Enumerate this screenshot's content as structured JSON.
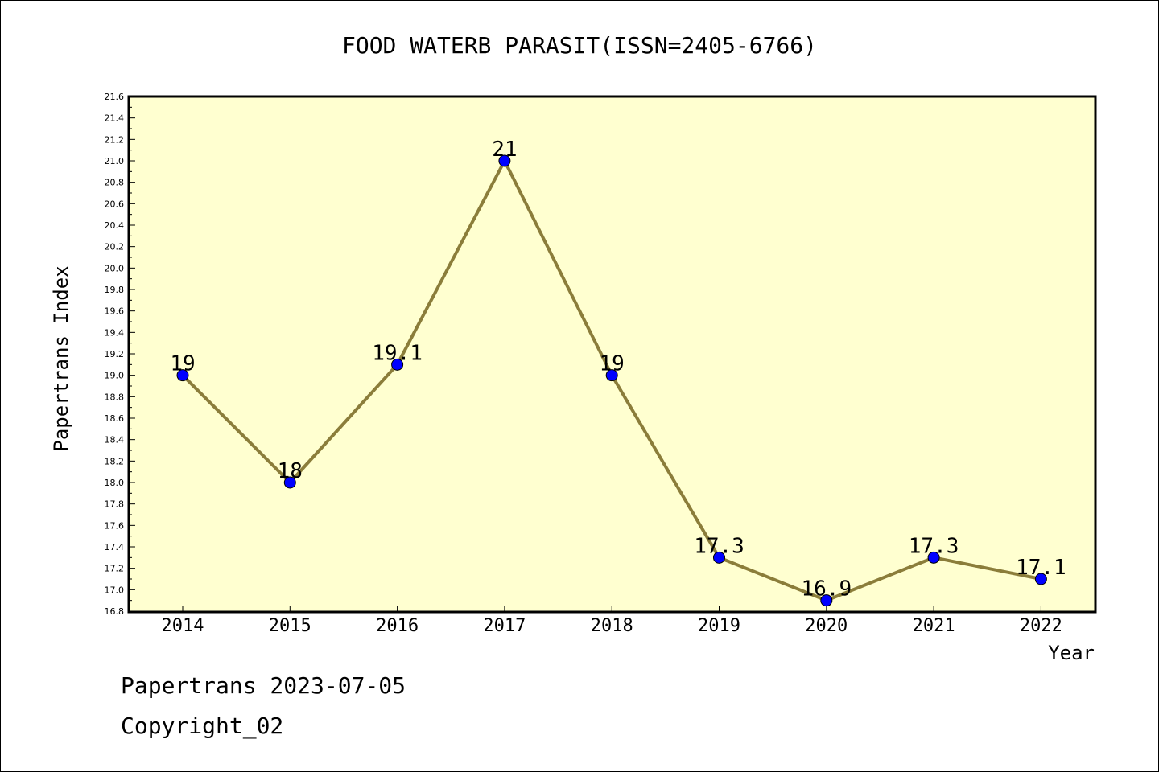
{
  "chart_data": {
    "type": "line",
    "title": "FOOD WATERB PARASIT(ISSN=2405-6766)",
    "xlabel": "Year",
    "ylabel": "Papertrans Index",
    "categories": [
      "2014",
      "2015",
      "2016",
      "2017",
      "2018",
      "2019",
      "2020",
      "2021",
      "2022"
    ],
    "series": [
      {
        "values": [
          19,
          18,
          19.1,
          21,
          19,
          17.3,
          16.9,
          17.3,
          17.1
        ],
        "labels": [
          "19",
          "18",
          "19.1",
          "21",
          "19",
          "17.3",
          "16.9",
          "17.3",
          "17.1"
        ]
      }
    ],
    "ylim": [
      16.8,
      21.6
    ],
    "ytick_step": 0.2,
    "yticks": [
      "16.8",
      "17.0",
      "17.2",
      "17.4",
      "17.6",
      "17.8",
      "18.0",
      "18.2",
      "18.4",
      "18.6",
      "18.8",
      "19.0",
      "19.2",
      "19.4",
      "19.6",
      "19.8",
      "20.0",
      "20.2",
      "20.4",
      "20.6",
      "20.8",
      "21.0",
      "21.2",
      "21.4",
      "21.6"
    ],
    "grid": false,
    "colors": {
      "plot_background": "#ffffd0",
      "line": "#8b7d3a",
      "marker": "#0000ff"
    }
  },
  "footer": {
    "line1": "Papertrans 2023-07-05",
    "line2": "Copyright_02"
  }
}
